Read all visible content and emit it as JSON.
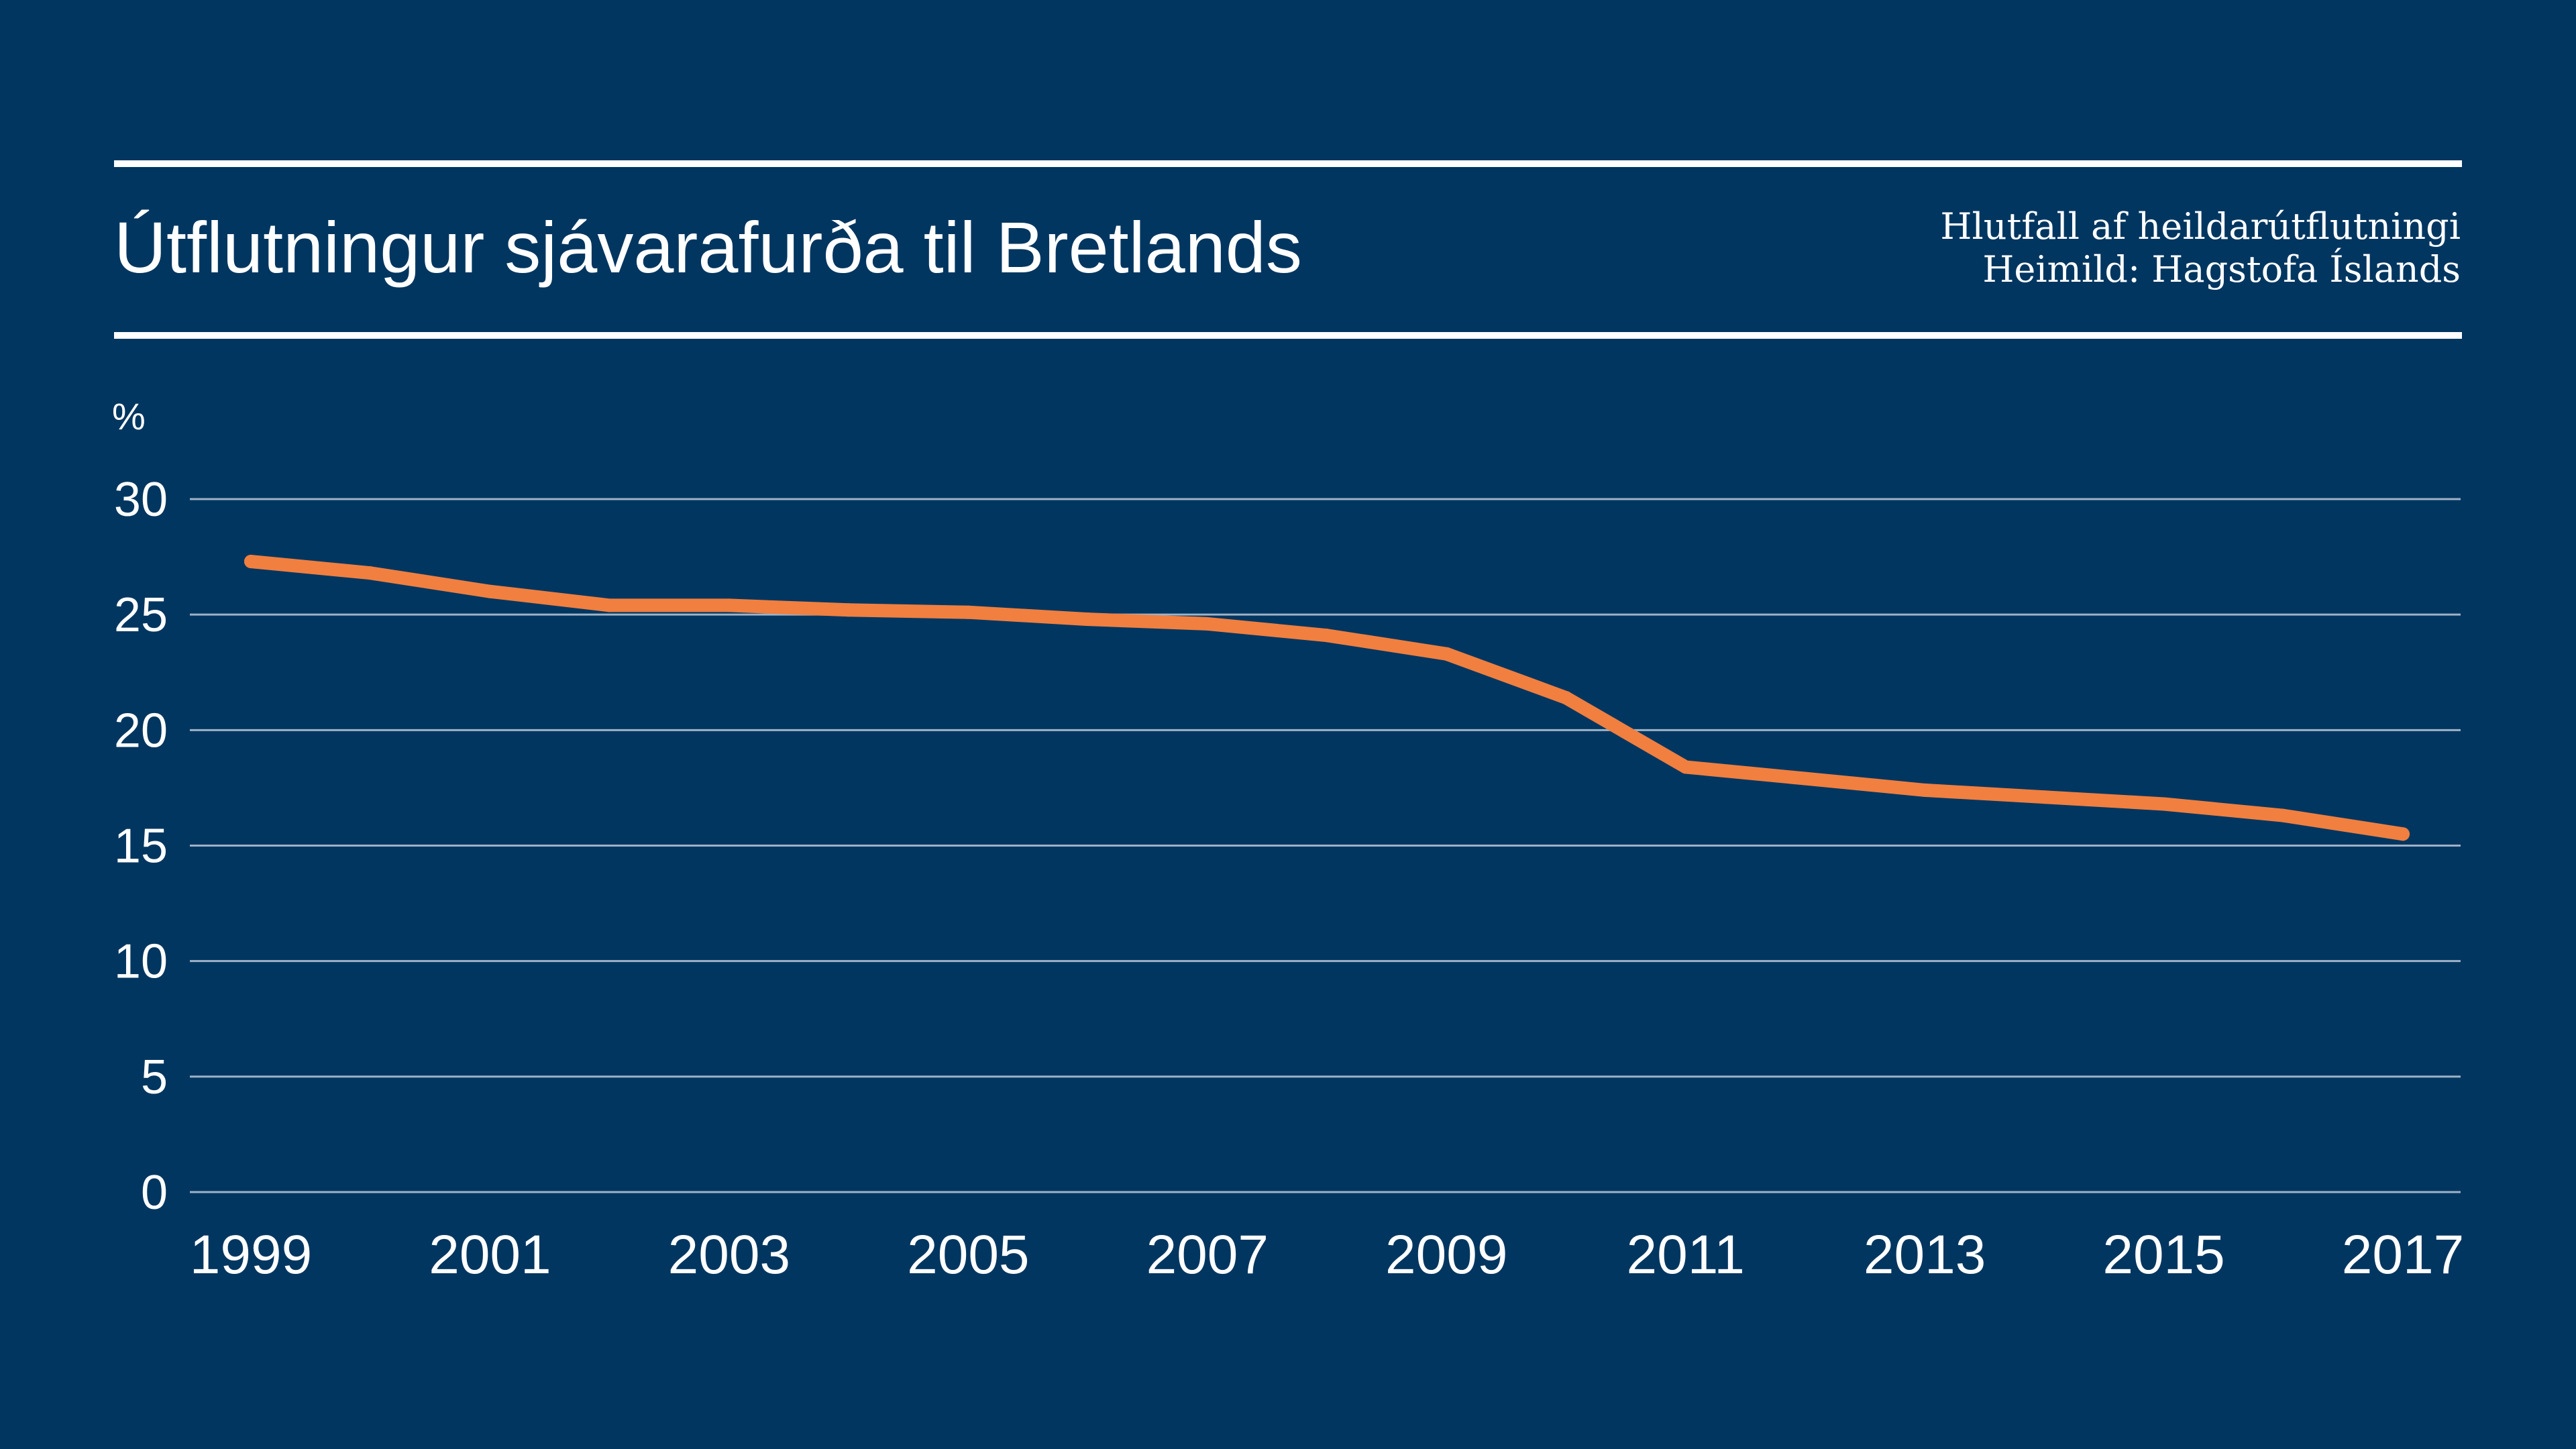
{
  "chart_data": {
    "type": "line",
    "title": "Útflutningur sjávarafurða til Bretlands",
    "subtitle": "Hlutfall af heildarútflutningi",
    "source": "Heimild: Hagstofa Íslands",
    "ylabel": "%",
    "xlabel": "",
    "ylim": [
      0,
      30
    ],
    "yticks": [
      "0",
      "5",
      "10",
      "15",
      "20",
      "25",
      "30"
    ],
    "xticks": [
      "1999",
      "2001",
      "2003",
      "2005",
      "2007",
      "2009",
      "2011",
      "2013",
      "2015",
      "2017"
    ],
    "x": [
      1999,
      2000,
      2001,
      2002,
      2003,
      2004,
      2005,
      2006,
      2007,
      2008,
      2009,
      2010,
      2011,
      2012,
      2013,
      2014,
      2015,
      2016,
      2017
    ],
    "series": [
      {
        "values": [
          27.3,
          26.8,
          26.0,
          25.4,
          25.4,
          25.2,
          25.1,
          24.8,
          24.6,
          24.1,
          23.3,
          21.4,
          18.4,
          17.9,
          17.4,
          17.1,
          16.8,
          16.3,
          15.5
        ]
      }
    ],
    "grid": true,
    "legend": "none"
  },
  "colors": {
    "background": "#003660",
    "line": "#f07f40",
    "grid": "#9fb2c6",
    "text": "#ffffff",
    "rule": "#ffffff"
  }
}
